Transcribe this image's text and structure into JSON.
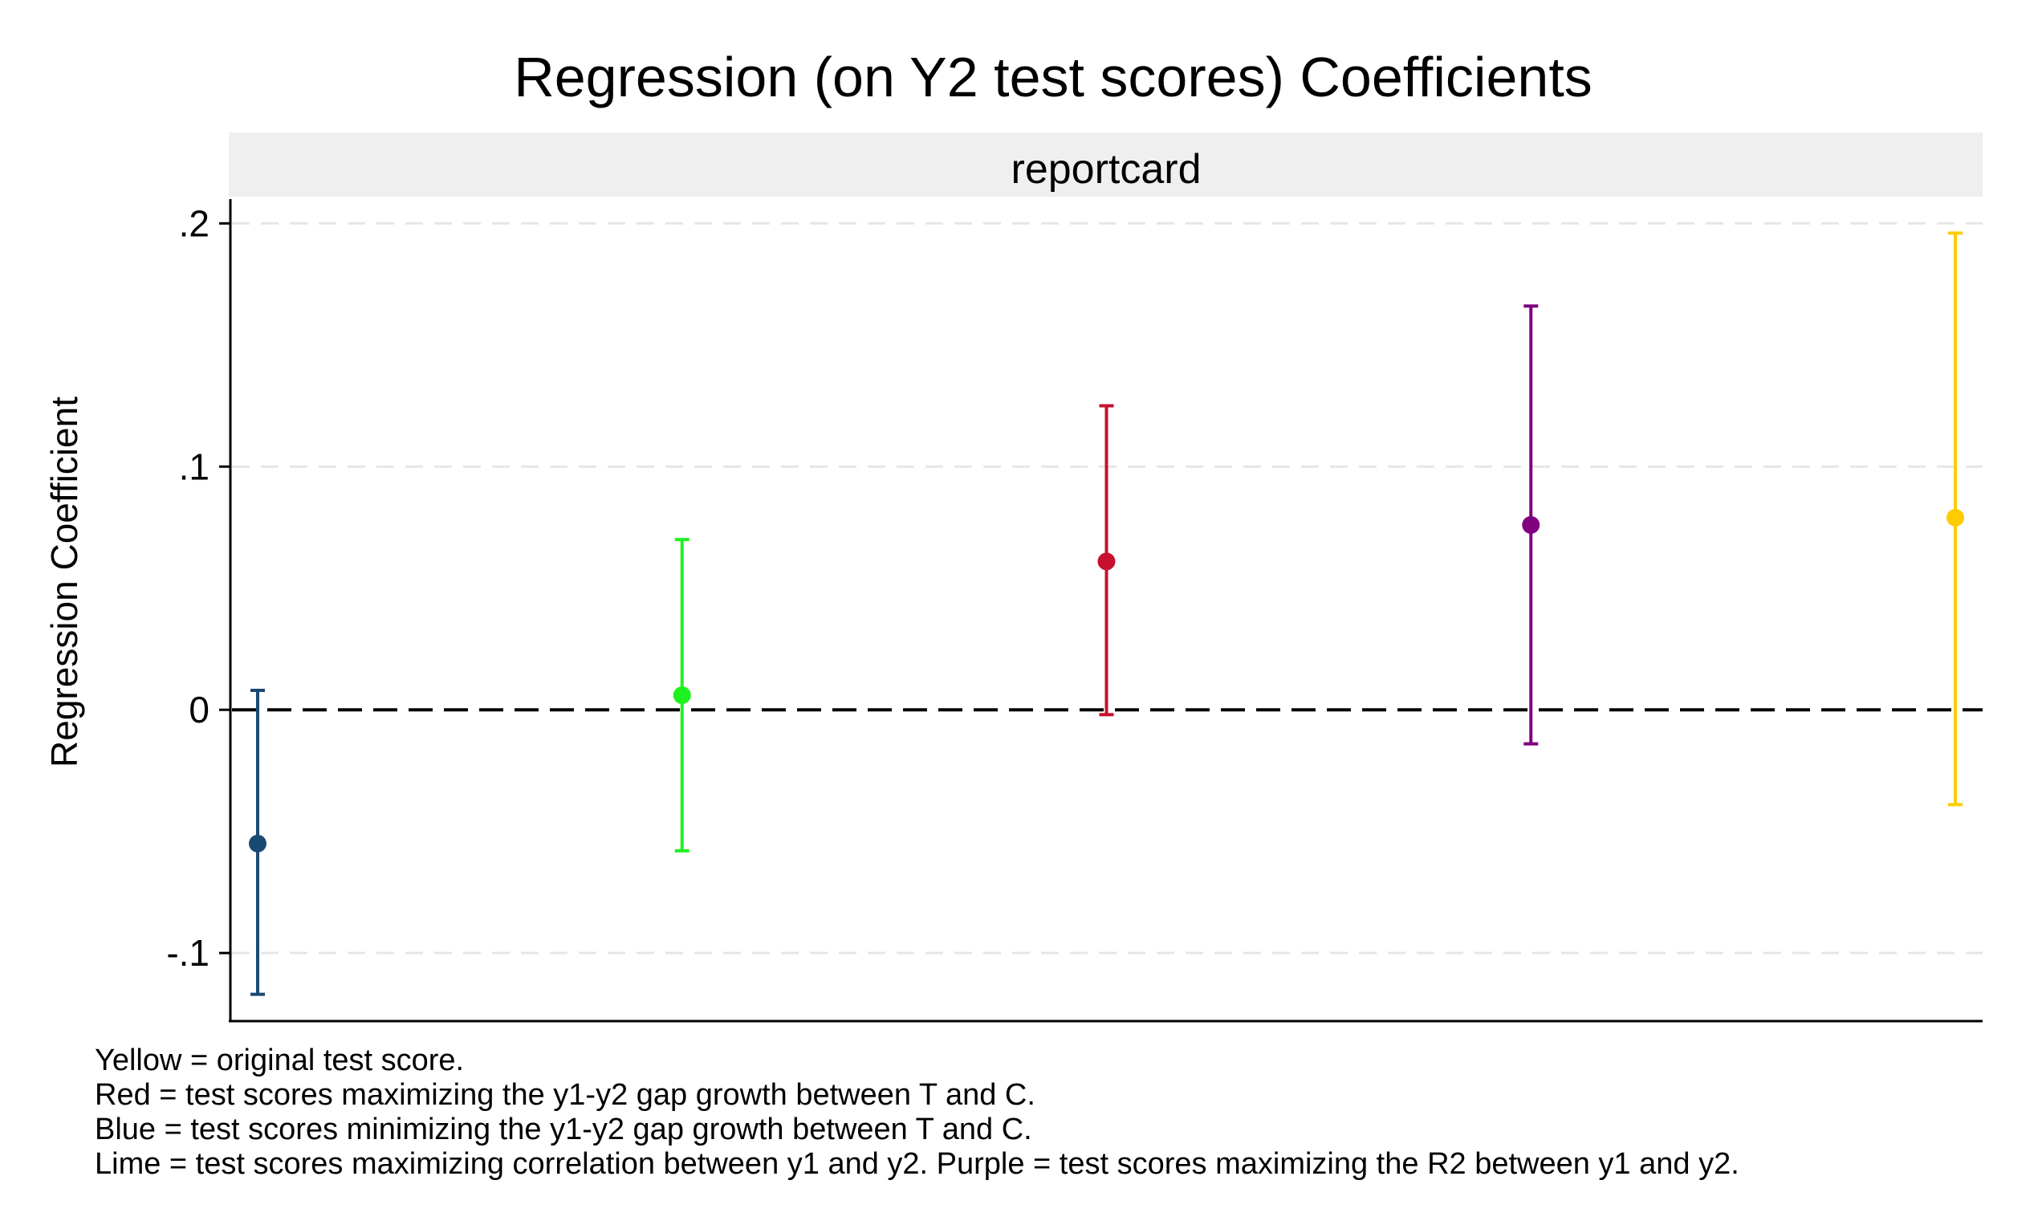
{
  "chart_data": {
    "type": "scatter",
    "title": "Regression (on Y2 test scores) Coefficients",
    "panel_label": "reportcard",
    "ylabel": "Regression Coefficient",
    "xlabel": "",
    "ylim": [
      -0.128,
      0.21
    ],
    "yticks": [
      {
        "value": 0.2,
        "label": ".2"
      },
      {
        "value": 0.1,
        "label": ".1"
      },
      {
        "value": 0,
        "label": "0"
      },
      {
        "value": -0.1,
        "label": "-.1"
      }
    ],
    "grid": true,
    "reference_line": {
      "value": 0,
      "style": "dashed"
    },
    "points": [
      {
        "estimate": -0.055,
        "ci_low": -0.117,
        "ci_high": 0.008,
        "color": "#1a4a72"
      },
      {
        "estimate": 0.006,
        "ci_low": -0.058,
        "ci_high": 0.07,
        "color": "#1ef21e"
      },
      {
        "estimate": 0.061,
        "ci_low": -0.002,
        "ci_high": 0.125,
        "color": "#c8102e"
      },
      {
        "estimate": 0.076,
        "ci_low": -0.014,
        "ci_high": 0.166,
        "color": "#800080"
      },
      {
        "estimate": 0.079,
        "ci_low": -0.039,
        "ci_high": 0.196,
        "color": "#ffcc00"
      }
    ]
  },
  "notes": [
    "Yellow = original test score.",
    "Red = test scores maximizing the y1-y2 gap growth between T and C.",
    "Blue = test scores minimizing the y1-y2 gap growth between T and C.",
    "Lime = test scores maximizing correlation between y1 and y2. Purple = test scores maximizing the R2 between y1 and y2."
  ]
}
